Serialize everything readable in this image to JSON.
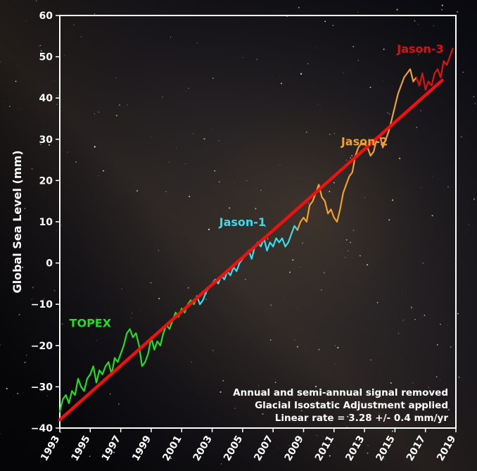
{
  "chart_data": {
    "type": "line",
    "title": "",
    "xlabel": "",
    "ylabel": "Global Sea Level (mm)",
    "xlim": [
      1993,
      2019
    ],
    "ylim": [
      -40,
      60
    ],
    "xticks": [
      "1993",
      "1995",
      "1997",
      "1999",
      "2001",
      "2003",
      "2005",
      "2007",
      "2009",
      "2011",
      "2013",
      "2015",
      "2017",
      "2019"
    ],
    "yticks": [
      "60",
      "50",
      "40",
      "30",
      "20",
      "10",
      "0",
      "−10",
      "−20",
      "−30",
      "−40"
    ],
    "grid": false,
    "legend": "none",
    "series": [
      {
        "name": "TOPEX",
        "color": "#22dd22",
        "x": [
          1993.0,
          1993.2,
          1993.4,
          1993.6,
          1993.8,
          1994.0,
          1994.2,
          1994.4,
          1994.6,
          1994.8,
          1995.0,
          1995.2,
          1995.4,
          1995.6,
          1995.8,
          1996.0,
          1996.2,
          1996.4,
          1996.6,
          1996.8,
          1997.0,
          1997.2,
          1997.4,
          1997.6,
          1997.8,
          1998.0,
          1998.2,
          1998.4,
          1998.6,
          1998.8,
          1999.0,
          1999.2,
          1999.4,
          1999.6,
          1999.8,
          2000.0,
          2000.2,
          2000.4,
          2000.6,
          2000.8,
          2001.0,
          2001.2,
          2001.4,
          2001.6,
          2001.8,
          2002.0
        ],
        "y": [
          -36,
          -33,
          -32,
          -34,
          -31,
          -32,
          -28,
          -30,
          -31,
          -28,
          -27,
          -25,
          -29,
          -26,
          -27,
          -25,
          -24,
          -27,
          -23,
          -24,
          -22,
          -20,
          -17,
          -16,
          -18,
          -17,
          -20,
          -25,
          -24,
          -22,
          -18,
          -21,
          -19,
          -20,
          -17,
          -15,
          -16,
          -14,
          -12,
          -13,
          -11,
          -12,
          -10,
          -9,
          -10,
          -8
        ]
      },
      {
        "name": "Jason-1",
        "color": "#33ddee",
        "x": [
          2002.0,
          2002.2,
          2002.4,
          2002.6,
          2002.8,
          2003.0,
          2003.2,
          2003.4,
          2003.6,
          2003.8,
          2004.0,
          2004.2,
          2004.4,
          2004.6,
          2004.8,
          2005.0,
          2005.2,
          2005.4,
          2005.6,
          2005.8,
          2006.0,
          2006.2,
          2006.4,
          2006.6,
          2006.8,
          2007.0,
          2007.2,
          2007.4,
          2007.6,
          2007.8,
          2008.0,
          2008.2,
          2008.4,
          2008.6
        ],
        "y": [
          -8,
          -10,
          -9,
          -7,
          -6,
          -5,
          -4,
          -5,
          -3,
          -4,
          -2,
          -3,
          -1,
          -2,
          0,
          1,
          2,
          3,
          1,
          4,
          5,
          4,
          6,
          3,
          5,
          4,
          6,
          5,
          6,
          4,
          5,
          7,
          9,
          8
        ]
      },
      {
        "name": "Jason-2",
        "color": "#f0a030",
        "x": [
          2008.6,
          2008.8,
          2009.0,
          2009.2,
          2009.4,
          2009.6,
          2009.8,
          2010.0,
          2010.2,
          2010.4,
          2010.6,
          2010.8,
          2011.0,
          2011.2,
          2011.4,
          2011.6,
          2011.8,
          2012.0,
          2012.2,
          2012.4,
          2012.6,
          2012.8,
          2013.0,
          2013.2,
          2013.4,
          2013.6,
          2013.8,
          2014.0,
          2014.2,
          2014.4,
          2014.6,
          2014.8,
          2015.0,
          2015.2,
          2015.4,
          2015.6,
          2015.8,
          2016.0,
          2016.2,
          2016.4
        ],
        "y": [
          8,
          10,
          11,
          10,
          14,
          15,
          17,
          19,
          16,
          15,
          12,
          13,
          11,
          10,
          13,
          17,
          19,
          21,
          22,
          26,
          28,
          29,
          29,
          28,
          26,
          27,
          30,
          31,
          28,
          30,
          32,
          35,
          38,
          41,
          43,
          45,
          46,
          47,
          44,
          45
        ]
      },
      {
        "name": "Jason-3",
        "color": "#dd1111",
        "x": [
          2016.4,
          2016.6,
          2016.8,
          2017.0,
          2017.2,
          2017.4,
          2017.6,
          2017.8,
          2018.0,
          2018.2,
          2018.4,
          2018.6,
          2018.8
        ],
        "y": [
          45,
          43,
          46,
          42,
          44,
          43,
          46,
          47,
          45,
          49,
          48,
          50,
          52
        ]
      }
    ],
    "trend": {
      "name": "Linear trend",
      "color": "#ee1111",
      "x": [
        1993,
        2018.1
      ],
      "y": [
        -38,
        44.3
      ]
    },
    "annotations": [
      "Annual and semi-annual signal removed",
      "Glacial Isostatic Adjustment applied",
      "Linear rate =  3.28 +/- 0.4 mm/yr"
    ]
  }
}
